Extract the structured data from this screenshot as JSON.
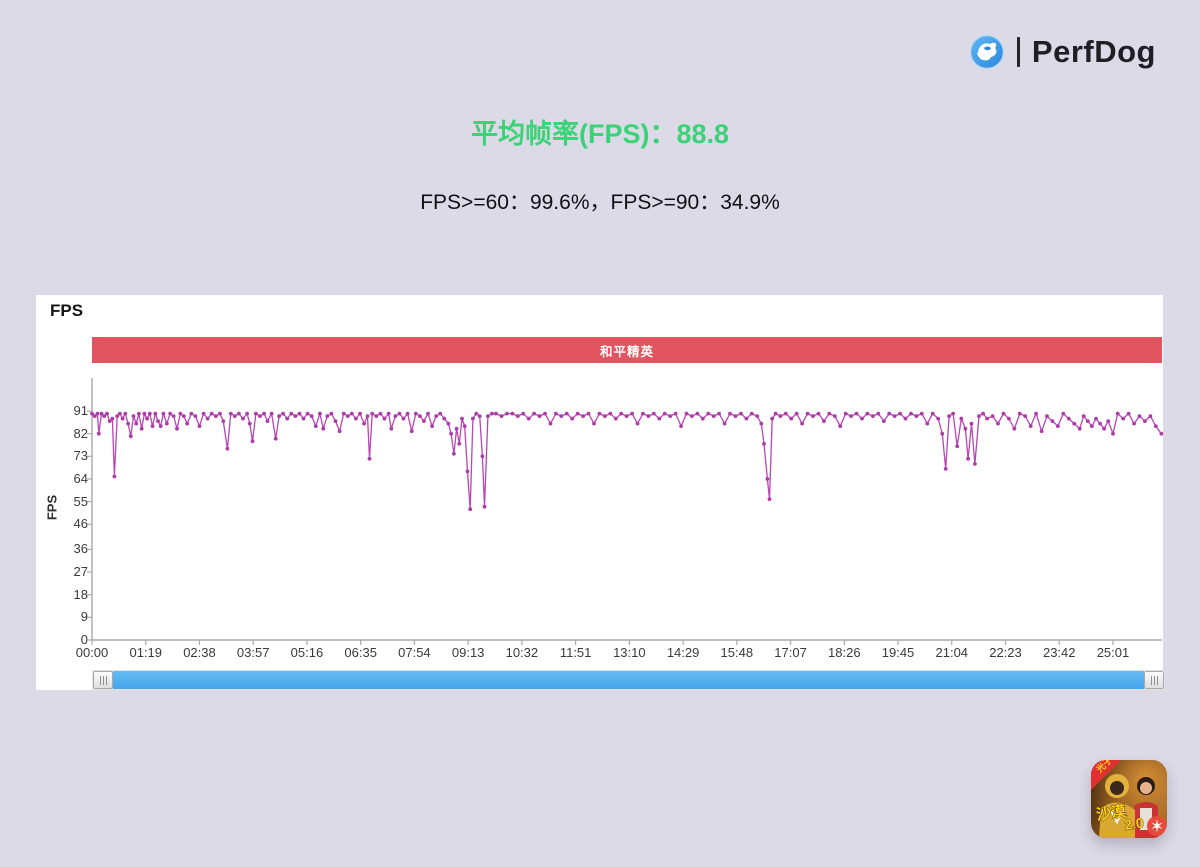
{
  "header": {
    "brand": "PerfDog",
    "logo_icon": "perfdog-dog-logo",
    "separator": "|"
  },
  "summary": {
    "title": "平均帧率(FPS)：88.8",
    "title_color": "#3bd278",
    "subtitle": "FPS>=60：99.6%，FPS>=90：34.9%"
  },
  "chart_panel": {
    "heading": "FPS",
    "banner": {
      "label": "和平精英",
      "color": "#e2545f"
    },
    "y_axis_title": "FPS"
  },
  "chart_data": {
    "type": "line",
    "title": "FPS over time",
    "series_name": "FPS",
    "line_color": "#b846b3",
    "marker_color": "#ad3ca8",
    "axis_color": "#a9a9a9",
    "ylim": [
      0,
      96
    ],
    "grid": false,
    "legend": "none",
    "y_ticks": [
      91,
      82,
      73,
      64,
      55,
      46,
      36,
      27,
      18,
      9,
      0
    ],
    "x_tick_labels": [
      "00:00",
      "01:19",
      "02:38",
      "03:57",
      "05:16",
      "06:35",
      "07:54",
      "09:13",
      "10:32",
      "11:51",
      "13:10",
      "14:29",
      "15:48",
      "17:07",
      "18:26",
      "19:45",
      "21:04",
      "22:23",
      "23:42",
      "25:01"
    ],
    "x_tick_seconds": [
      0,
      79,
      158,
      237,
      316,
      395,
      474,
      553,
      632,
      711,
      790,
      869,
      948,
      1027,
      1106,
      1185,
      1264,
      1343,
      1422,
      1501
    ],
    "points": [
      [
        0,
        90
      ],
      [
        4,
        89
      ],
      [
        8,
        90
      ],
      [
        10,
        82
      ],
      [
        14,
        90
      ],
      [
        18,
        89
      ],
      [
        22,
        90
      ],
      [
        26,
        87
      ],
      [
        30,
        88
      ],
      [
        33,
        65
      ],
      [
        37,
        89
      ],
      [
        41,
        90
      ],
      [
        45,
        88
      ],
      [
        49,
        90
      ],
      [
        53,
        86
      ],
      [
        57,
        81
      ],
      [
        61,
        89
      ],
      [
        65,
        86
      ],
      [
        69,
        90
      ],
      [
        73,
        84
      ],
      [
        77,
        90
      ],
      [
        81,
        88
      ],
      [
        85,
        90
      ],
      [
        89,
        85
      ],
      [
        93,
        90
      ],
      [
        97,
        87
      ],
      [
        101,
        85
      ],
      [
        105,
        90
      ],
      [
        110,
        86
      ],
      [
        115,
        90
      ],
      [
        120,
        89
      ],
      [
        125,
        84
      ],
      [
        130,
        90
      ],
      [
        135,
        89
      ],
      [
        140,
        86
      ],
      [
        146,
        90
      ],
      [
        152,
        89
      ],
      [
        158,
        85
      ],
      [
        164,
        90
      ],
      [
        170,
        88
      ],
      [
        176,
        90
      ],
      [
        182,
        89
      ],
      [
        188,
        90
      ],
      [
        193,
        87
      ],
      [
        199,
        76
      ],
      [
        204,
        90
      ],
      [
        210,
        89
      ],
      [
        216,
        90
      ],
      [
        222,
        88
      ],
      [
        228,
        90
      ],
      [
        232,
        86
      ],
      [
        236,
        79
      ],
      [
        241,
        90
      ],
      [
        247,
        89
      ],
      [
        253,
        90
      ],
      [
        258,
        87
      ],
      [
        264,
        90
      ],
      [
        270,
        80
      ],
      [
        275,
        89
      ],
      [
        281,
        90
      ],
      [
        287,
        88
      ],
      [
        293,
        90
      ],
      [
        299,
        89
      ],
      [
        305,
        90
      ],
      [
        311,
        88
      ],
      [
        317,
        90
      ],
      [
        323,
        89
      ],
      [
        329,
        85
      ],
      [
        335,
        90
      ],
      [
        340,
        84
      ],
      [
        346,
        89
      ],
      [
        352,
        90
      ],
      [
        358,
        87
      ],
      [
        364,
        83
      ],
      [
        370,
        90
      ],
      [
        376,
        89
      ],
      [
        382,
        90
      ],
      [
        388,
        88
      ],
      [
        394,
        90
      ],
      [
        400,
        86
      ],
      [
        405,
        89
      ],
      [
        408,
        72
      ],
      [
        412,
        90
      ],
      [
        418,
        89
      ],
      [
        424,
        90
      ],
      [
        430,
        88
      ],
      [
        436,
        90
      ],
      [
        440,
        84
      ],
      [
        446,
        89
      ],
      [
        452,
        90
      ],
      [
        458,
        88
      ],
      [
        464,
        90
      ],
      [
        470,
        83
      ],
      [
        476,
        90
      ],
      [
        482,
        89
      ],
      [
        488,
        87
      ],
      [
        494,
        90
      ],
      [
        500,
        85
      ],
      [
        506,
        89
      ],
      [
        512,
        90
      ],
      [
        518,
        88
      ],
      [
        524,
        86
      ],
      [
        528,
        82
      ],
      [
        532,
        74
      ],
      [
        536,
        84
      ],
      [
        540,
        78
      ],
      [
        544,
        88
      ],
      [
        548,
        85
      ],
      [
        552,
        67
      ],
      [
        556,
        52
      ],
      [
        560,
        88
      ],
      [
        565,
        90
      ],
      [
        570,
        89
      ],
      [
        574,
        73
      ],
      [
        577,
        53
      ],
      [
        582,
        89
      ],
      [
        588,
        90
      ],
      [
        594,
        90
      ],
      [
        602,
        89
      ],
      [
        610,
        90
      ],
      [
        618,
        90
      ],
      [
        626,
        89
      ],
      [
        634,
        90
      ],
      [
        642,
        88
      ],
      [
        650,
        90
      ],
      [
        658,
        89
      ],
      [
        666,
        90
      ],
      [
        674,
        86
      ],
      [
        682,
        90
      ],
      [
        690,
        89
      ],
      [
        698,
        90
      ],
      [
        706,
        88
      ],
      [
        714,
        90
      ],
      [
        722,
        89
      ],
      [
        730,
        90
      ],
      [
        738,
        86
      ],
      [
        746,
        90
      ],
      [
        754,
        89
      ],
      [
        762,
        90
      ],
      [
        770,
        88
      ],
      [
        778,
        90
      ],
      [
        786,
        89
      ],
      [
        794,
        90
      ],
      [
        802,
        86
      ],
      [
        810,
        90
      ],
      [
        818,
        89
      ],
      [
        826,
        90
      ],
      [
        834,
        88
      ],
      [
        842,
        90
      ],
      [
        850,
        89
      ],
      [
        858,
        90
      ],
      [
        866,
        85
      ],
      [
        874,
        90
      ],
      [
        882,
        89
      ],
      [
        890,
        90
      ],
      [
        898,
        88
      ],
      [
        906,
        90
      ],
      [
        914,
        89
      ],
      [
        922,
        90
      ],
      [
        930,
        86
      ],
      [
        938,
        90
      ],
      [
        946,
        89
      ],
      [
        954,
        90
      ],
      [
        962,
        88
      ],
      [
        970,
        90
      ],
      [
        978,
        89
      ],
      [
        984,
        86
      ],
      [
        988,
        78
      ],
      [
        993,
        64
      ],
      [
        996,
        56
      ],
      [
        1000,
        88
      ],
      [
        1005,
        90
      ],
      [
        1012,
        89
      ],
      [
        1020,
        90
      ],
      [
        1028,
        88
      ],
      [
        1036,
        90
      ],
      [
        1044,
        86
      ],
      [
        1052,
        90
      ],
      [
        1060,
        89
      ],
      [
        1068,
        90
      ],
      [
        1076,
        87
      ],
      [
        1084,
        90
      ],
      [
        1092,
        89
      ],
      [
        1100,
        85
      ],
      [
        1108,
        90
      ],
      [
        1116,
        89
      ],
      [
        1124,
        90
      ],
      [
        1132,
        88
      ],
      [
        1140,
        90
      ],
      [
        1148,
        89
      ],
      [
        1156,
        90
      ],
      [
        1164,
        87
      ],
      [
        1172,
        90
      ],
      [
        1180,
        89
      ],
      [
        1188,
        90
      ],
      [
        1196,
        88
      ],
      [
        1204,
        90
      ],
      [
        1212,
        89
      ],
      [
        1220,
        90
      ],
      [
        1228,
        86
      ],
      [
        1236,
        90
      ],
      [
        1244,
        88
      ],
      [
        1250,
        82
      ],
      [
        1255,
        68
      ],
      [
        1260,
        89
      ],
      [
        1266,
        90
      ],
      [
        1272,
        77
      ],
      [
        1278,
        88
      ],
      [
        1284,
        84
      ],
      [
        1288,
        72
      ],
      [
        1293,
        86
      ],
      [
        1298,
        70
      ],
      [
        1304,
        89
      ],
      [
        1310,
        90
      ],
      [
        1316,
        88
      ],
      [
        1324,
        89
      ],
      [
        1332,
        86
      ],
      [
        1340,
        90
      ],
      [
        1348,
        88
      ],
      [
        1356,
        84
      ],
      [
        1364,
        90
      ],
      [
        1372,
        89
      ],
      [
        1380,
        85
      ],
      [
        1388,
        90
      ],
      [
        1396,
        83
      ],
      [
        1404,
        89
      ],
      [
        1412,
        87
      ],
      [
        1420,
        85
      ],
      [
        1428,
        90
      ],
      [
        1436,
        88
      ],
      [
        1444,
        86
      ],
      [
        1452,
        84
      ],
      [
        1458,
        89
      ],
      [
        1464,
        87
      ],
      [
        1470,
        85
      ],
      [
        1476,
        88
      ],
      [
        1482,
        86
      ],
      [
        1488,
        84
      ],
      [
        1494,
        87
      ],
      [
        1501,
        82
      ],
      [
        1508,
        90
      ],
      [
        1516,
        88
      ],
      [
        1524,
        90
      ],
      [
        1532,
        86
      ],
      [
        1540,
        89
      ],
      [
        1548,
        87
      ],
      [
        1556,
        89
      ],
      [
        1564,
        85
      ],
      [
        1572,
        82
      ]
    ]
  },
  "scrollbar": {
    "left_handle": "grip",
    "right_handle": "grip"
  },
  "game_icon": {
    "badge": "光子",
    "caption_part1": "沙漠",
    "caption_part2": "2.0",
    "spark": "✶"
  }
}
